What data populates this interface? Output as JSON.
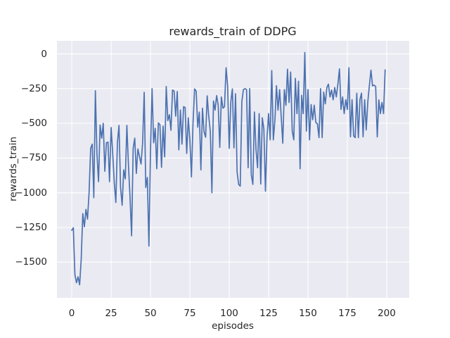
{
  "figure": {
    "title": "rewards_train of DDPG",
    "xlabel": "episodes",
    "ylabel": "rewards_train"
  },
  "chart_data": {
    "type": "line",
    "title": "rewards_train of DDPG",
    "xlabel": "episodes",
    "ylabel": "rewards_train",
    "legend": null,
    "grid": true,
    "x_ticks": [
      0,
      25,
      50,
      75,
      100,
      125,
      150,
      175,
      200
    ],
    "x_tick_labels": [
      "0",
      "25",
      "50",
      "75",
      "100",
      "125",
      "150",
      "175",
      "200"
    ],
    "y_ticks": [
      0,
      -250,
      -500,
      -750,
      -1000,
      -1250,
      -1500
    ],
    "y_tick_labels": [
      "0",
      "−250",
      "−500",
      "−750",
      "−1000",
      "−1250",
      "−1500"
    ],
    "xlim": [
      -9.4,
      214.3
    ],
    "ylim": [
      -1757,
      94
    ],
    "colors": {
      "line": "#4c72b0",
      "plot_background": "#eaeaf2",
      "grid": "#ffffff",
      "figure_background": "#ffffff",
      "text": "#262626"
    },
    "series": [
      {
        "name": "rewards_train",
        "x_start": 0,
        "x_step": 1,
        "values": [
          -1270,
          -1252,
          -1590,
          -1648,
          -1605,
          -1663,
          -1480,
          -1150,
          -1245,
          -1120,
          -1190,
          -1000,
          -680,
          -650,
          -1035,
          -265,
          -720,
          -920,
          -512,
          -607,
          -500,
          -845,
          -640,
          -635,
          -920,
          -530,
          -715,
          -928,
          -1070,
          -637,
          -515,
          -962,
          -1090,
          -835,
          -900,
          -515,
          -800,
          -1030,
          -1310,
          -680,
          -607,
          -861,
          -685,
          -740,
          -793,
          -640,
          -277,
          -962,
          -890,
          -1384,
          -700,
          -250,
          -640,
          -536,
          -827,
          -497,
          -510,
          -817,
          -520,
          -742,
          -235,
          -480,
          -438,
          -550,
          -260,
          -268,
          -448,
          -271,
          -691,
          -404,
          -650,
          -380,
          -386,
          -717,
          -460,
          -617,
          -886,
          -500,
          -252,
          -268,
          -528,
          -419,
          -835,
          -391,
          -560,
          -600,
          -302,
          -450,
          -560,
          -1000,
          -339,
          -405,
          -300,
          -370,
          -673,
          -310,
          -391,
          -380,
          -100,
          -230,
          -680,
          -345,
          -252,
          -677,
          -287,
          -852,
          -940,
          -952,
          -345,
          -257,
          -250,
          -257,
          -820,
          -250,
          -870,
          -940,
          -419,
          -688,
          -820,
          -430,
          -937,
          -460,
          -540,
          -988,
          -600,
          -430,
          -619,
          -120,
          -619,
          -480,
          -229,
          -405,
          -257,
          -450,
          -643,
          -257,
          -370,
          -110,
          -350,
          -130,
          -556,
          -619,
          -176,
          -430,
          -197,
          -827,
          -298,
          -430,
          10,
          -556,
          -257,
          -619,
          -365,
          -474,
          -369,
          -495,
          -503,
          -603,
          -250,
          -603,
          -275,
          -360,
          -242,
          -218,
          -310,
          -260,
          -330,
          -242,
          -310,
          -218,
          -108,
          -400,
          -310,
          -430,
          -330,
          -400,
          -100,
          -597,
          -330,
          -590,
          -603,
          -283,
          -603,
          -330,
          -283,
          -597,
          -330,
          -548,
          -345,
          -227,
          -117,
          -230,
          -225,
          -235,
          -598,
          -331,
          -430,
          -350,
          -430,
          -115
        ]
      }
    ]
  }
}
